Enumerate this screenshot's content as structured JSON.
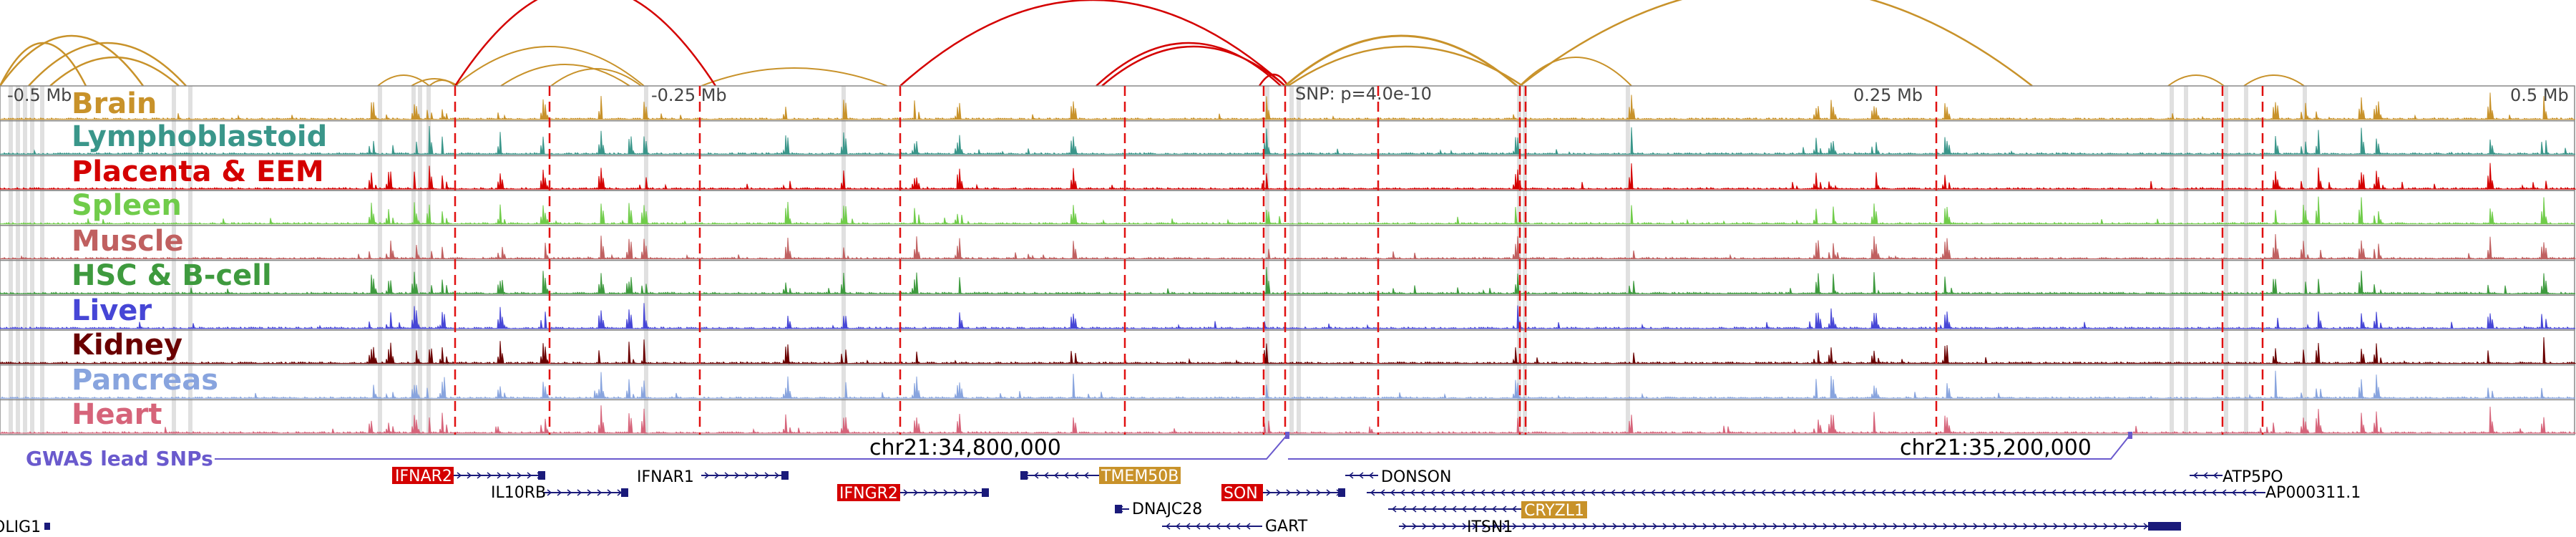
{
  "scale_labels": [
    "-0.5 Mb",
    "-0.25 Mb",
    "SNP: p=4.0e-10",
    "0.25 Mb",
    "0.5 Mb"
  ],
  "tracks": [
    {
      "name": "Brain",
      "color": "#C8922A"
    },
    {
      "name": "Lymphoblastoid",
      "color": "#3A968A"
    },
    {
      "name": "Placenta & EEM",
      "color": "#D40000"
    },
    {
      "name": "Spleen",
      "color": "#70CC4A"
    },
    {
      "name": "Muscle",
      "color": "#C06060"
    },
    {
      "name": "HSC & B-cell",
      "color": "#3E9A3E"
    },
    {
      "name": "Liver",
      "color": "#4646D6"
    },
    {
      "name": "Kidney",
      "color": "#6A0000"
    },
    {
      "name": "Pancreas",
      "color": "#88A4DE"
    },
    {
      "name": "Heart",
      "color": "#D6647A"
    }
  ],
  "gwas": {
    "label": "GWAS lead SNPs",
    "color": "#6A5ACD",
    "coords": [
      "chr21:34,800,000",
      "chr21:35,200,000"
    ]
  },
  "genes": {
    "IFNAR2": "IFNAR2",
    "IL10RB": "IL10RB",
    "IFNAR1": "IFNAR1",
    "IFNGR2": "IFNGR2",
    "TMEM50B": "TMEM50B",
    "DNAJC28": "DNAJC28",
    "SON": "SON",
    "GART": "GART",
    "DONSON": "DONSON",
    "CRYZL1": "CRYZL1",
    "ITSN1": "ITSN1",
    "ATP5PO": "ATP5PO",
    "AP000311_1": "AP000311.1",
    "OLIG1": "OLIG1"
  },
  "colors": {
    "red_gene_bg": "#D40000",
    "gold_gene_bg": "#C8922A",
    "gene_line": "#1A1A7A",
    "dashed_line": "#E01010",
    "grey_band": "#D8D8D8",
    "arc_red": "#D40000",
    "arc_gold": "#C8922A"
  }
}
